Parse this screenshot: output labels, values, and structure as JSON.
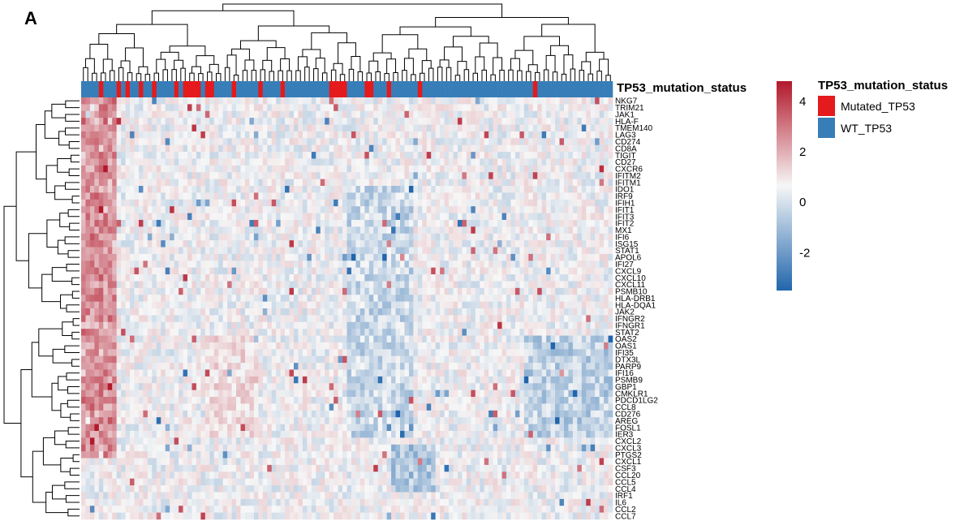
{
  "panel_label": "A",
  "colors": {
    "mutated": "#e41a1c",
    "wildtype": "#377eb8",
    "scale_low": "#2166ac",
    "scale_mid": "#f7f7f7",
    "scale_high": "#b2182b",
    "dendrogram": "#000000"
  },
  "chart_data": {
    "type": "heatmap",
    "title": "",
    "xlabel": "",
    "ylabel": "",
    "color_scale": {
      "range": [
        -3.5,
        4.8
      ],
      "ticks": [
        4,
        2,
        0,
        -2
      ],
      "tick_labels": [
        "4",
        "2",
        "0",
        "-2"
      ]
    },
    "annotation": {
      "title": "TP53_mutation_status",
      "legend": [
        {
          "label": "Mutated_TP53",
          "color": "#e41a1c"
        },
        {
          "label": "WT_TP53",
          "color": "#377eb8"
        }
      ],
      "n_samples": 120,
      "mutated_sample_indices": [
        4,
        8,
        10,
        13,
        16,
        21,
        23,
        24,
        25,
        26,
        28,
        29,
        34,
        40,
        45,
        56,
        57,
        58,
        59,
        64,
        65,
        69,
        76,
        102
      ]
    },
    "genes": [
      "NKG7",
      "TRIM21",
      "JAK1",
      "HLA-F",
      "TMEM140",
      "LAG3",
      "CD274",
      "CD8A",
      "TIGIT",
      "CD27",
      "CXCR6",
      "IFITM2",
      "IFITM1",
      "IDO1",
      "IRF9",
      "IFIH1",
      "IFIT1",
      "IFIT3",
      "IFIT2",
      "MX1",
      "IFI6",
      "ISG15",
      "STAT1",
      "APOL6",
      "IFI27",
      "CXCL9",
      "CXCL10",
      "CXCL11",
      "PSMB10",
      "HLA-DRB1",
      "HLA-DQA1",
      "JAK2",
      "IFNGR2",
      "IFNGR1",
      "STAT2",
      "OAS2",
      "OAS1",
      "IFI35",
      "DTX3L",
      "PARP9",
      "IFI16",
      "PSMB9",
      "GBP1",
      "CMKLR1",
      "PDCD1LG2",
      "CCL8",
      "CD276",
      "AREG",
      "FOSL1",
      "IER3",
      "CXCL2",
      "CXCL3",
      "PTGS2",
      "CXCL1",
      "CSF3",
      "CCL20",
      "CCL5",
      "CCL4",
      "IRF1",
      "IL6",
      "CCL2",
      "CCL7"
    ]
  }
}
